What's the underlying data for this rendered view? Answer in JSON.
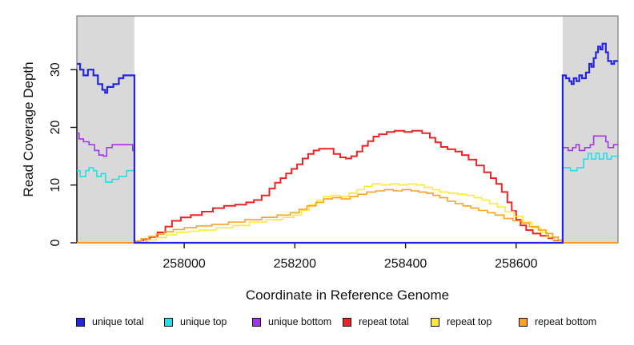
{
  "chart_data": {
    "type": "line",
    "step": true,
    "title": "",
    "xlabel": "Coordinate in Reference Genome",
    "ylabel": "Read Coverage Depth",
    "xlim": [
      257806,
      258784
    ],
    "ylim": [
      0,
      39.3
    ],
    "x_ticks": [
      258000,
      258200,
      258400,
      258600
    ],
    "y_ticks": [
      0,
      10,
      20,
      30
    ],
    "grid": false,
    "legend_position": "bottom",
    "background_color": "#ffffff",
    "box_color": "#8a8a8a",
    "axis_color": "#111111",
    "shade_color": "#d9d9d9",
    "shaded_regions": [
      {
        "x0": 257806,
        "x1": 257910
      },
      {
        "x0": 258684,
        "x1": 258784
      }
    ],
    "series": [
      {
        "name": "unique total",
        "color": "#2424e4",
        "z": 5,
        "lw": 2.2,
        "points": [
          [
            257806,
            31
          ],
          [
            257812,
            30
          ],
          [
            257818,
            29
          ],
          [
            257826,
            30
          ],
          [
            257836,
            29
          ],
          [
            257844,
            27.5
          ],
          [
            257852,
            26.5
          ],
          [
            257857,
            26
          ],
          [
            257861,
            27
          ],
          [
            257872,
            27.5
          ],
          [
            257882,
            28.5
          ],
          [
            257890,
            29
          ],
          [
            257910,
            0
          ],
          [
            258684,
            29
          ],
          [
            258690,
            28.5
          ],
          [
            258696,
            28
          ],
          [
            258700,
            27.5
          ],
          [
            258704,
            28.5
          ],
          [
            258709,
            28
          ],
          [
            258714,
            29
          ],
          [
            258719,
            28.5
          ],
          [
            258726,
            29.5
          ],
          [
            258732,
            31
          ],
          [
            258736,
            30.5
          ],
          [
            258740,
            32
          ],
          [
            258744,
            33
          ],
          [
            258748,
            34
          ],
          [
            258752,
            33.5
          ],
          [
            258756,
            34.5
          ],
          [
            258762,
            33
          ],
          [
            258766,
            31.5
          ],
          [
            258772,
            31
          ],
          [
            258777,
            31.5
          ]
        ]
      },
      {
        "name": "unique top",
        "color": "#22dfe8",
        "z": 0,
        "lw": 1.6,
        "points": [
          [
            257806,
            12.5
          ],
          [
            257812,
            11.5
          ],
          [
            257822,
            12.5
          ],
          [
            257828,
            13
          ],
          [
            257836,
            12.5
          ],
          [
            257842,
            11.5
          ],
          [
            257850,
            12
          ],
          [
            257858,
            10.5
          ],
          [
            257870,
            11
          ],
          [
            257882,
            11.5
          ],
          [
            257896,
            12.5
          ],
          [
            257910,
            0
          ],
          [
            258684,
            13
          ],
          [
            258698,
            12.5
          ],
          [
            258710,
            13
          ],
          [
            258722,
            14.5
          ],
          [
            258730,
            15.5
          ],
          [
            258736,
            14.5
          ],
          [
            258744,
            15.5
          ],
          [
            258750,
            14.5
          ],
          [
            258758,
            15.5
          ],
          [
            258764,
            14.5
          ],
          [
            258772,
            15
          ]
        ]
      },
      {
        "name": "unique bottom",
        "color": "#a335ec",
        "z": 1,
        "lw": 1.6,
        "points": [
          [
            257806,
            19
          ],
          [
            257810,
            18
          ],
          [
            257818,
            17.5
          ],
          [
            257828,
            17
          ],
          [
            257838,
            16
          ],
          [
            257846,
            15.2
          ],
          [
            257854,
            15
          ],
          [
            257860,
            16.5
          ],
          [
            257870,
            17
          ],
          [
            257902,
            17
          ],
          [
            257907,
            16
          ],
          [
            257910,
            0
          ],
          [
            258684,
            16.5
          ],
          [
            258694,
            16
          ],
          [
            258702,
            16.5
          ],
          [
            258708,
            17
          ],
          [
            258714,
            16
          ],
          [
            258724,
            16.5
          ],
          [
            258734,
            17
          ],
          [
            258740,
            18.5
          ],
          [
            258758,
            18.5
          ],
          [
            258762,
            17.5
          ],
          [
            258766,
            16.5
          ],
          [
            258776,
            17
          ]
        ]
      },
      {
        "name": "repeat total",
        "color": "#ed2424",
        "z": 2,
        "lw": 2.0,
        "points": [
          [
            257806,
            0
          ],
          [
            257916,
            0.2
          ],
          [
            257926,
            0.6
          ],
          [
            257938,
            1
          ],
          [
            257952,
            1.8
          ],
          [
            257966,
            2.8
          ],
          [
            257978,
            3.8
          ],
          [
            257994,
            4.4
          ],
          [
            258012,
            4.8
          ],
          [
            258032,
            5.4
          ],
          [
            258052,
            6
          ],
          [
            258072,
            6.4
          ],
          [
            258092,
            6.6
          ],
          [
            258112,
            7
          ],
          [
            258126,
            7.4
          ],
          [
            258140,
            8.2
          ],
          [
            258154,
            9.4
          ],
          [
            258164,
            10.4
          ],
          [
            258174,
            11.2
          ],
          [
            258184,
            12
          ],
          [
            258194,
            12.8
          ],
          [
            258204,
            13.6
          ],
          [
            258214,
            14.6
          ],
          [
            258224,
            15.4
          ],
          [
            258234,
            16
          ],
          [
            258244,
            16.3
          ],
          [
            258270,
            15.4
          ],
          [
            258282,
            14.8
          ],
          [
            258292,
            14.6
          ],
          [
            258302,
            15
          ],
          [
            258312,
            15.8
          ],
          [
            258322,
            16.8
          ],
          [
            258332,
            17.6
          ],
          [
            258342,
            18.4
          ],
          [
            258352,
            18.8
          ],
          [
            258366,
            19.2
          ],
          [
            258380,
            19.4
          ],
          [
            258398,
            19.2
          ],
          [
            258412,
            19.4
          ],
          [
            258430,
            19
          ],
          [
            258444,
            18.2
          ],
          [
            258454,
            17.4
          ],
          [
            258464,
            16.6
          ],
          [
            258476,
            16.2
          ],
          [
            258490,
            15.8
          ],
          [
            258502,
            15.2
          ],
          [
            258514,
            14.4
          ],
          [
            258528,
            13.4
          ],
          [
            258542,
            12.2
          ],
          [
            258554,
            11.2
          ],
          [
            258564,
            10.2
          ],
          [
            258574,
            8.8
          ],
          [
            258584,
            7
          ],
          [
            258592,
            5.5
          ],
          [
            258600,
            4
          ],
          [
            258608,
            3
          ],
          [
            258618,
            2.2
          ],
          [
            258630,
            1.6
          ],
          [
            258644,
            1.2
          ],
          [
            258658,
            0.8
          ],
          [
            258668,
            0.4
          ],
          [
            258678,
            0.2
          ],
          [
            258684,
            0
          ]
        ]
      },
      {
        "name": "repeat top",
        "color": "#fce93a",
        "z": 3,
        "lw": 1.6,
        "points": [
          [
            257806,
            0
          ],
          [
            257920,
            0.2
          ],
          [
            257934,
            0.5
          ],
          [
            257950,
            0.9
          ],
          [
            257968,
            1.4
          ],
          [
            257986,
            1.8
          ],
          [
            258008,
            2
          ],
          [
            258028,
            2.2
          ],
          [
            258058,
            2.6
          ],
          [
            258088,
            3
          ],
          [
            258118,
            3.6
          ],
          [
            258148,
            4
          ],
          [
            258178,
            4.4
          ],
          [
            258198,
            4.8
          ],
          [
            258212,
            5.6
          ],
          [
            258226,
            6.6
          ],
          [
            258240,
            7.4
          ],
          [
            258252,
            8
          ],
          [
            258266,
            8.2
          ],
          [
            258282,
            8
          ],
          [
            258298,
            8.6
          ],
          [
            258312,
            9.2
          ],
          [
            258326,
            9.8
          ],
          [
            258340,
            10.2
          ],
          [
            258356,
            10
          ],
          [
            258372,
            10.2
          ],
          [
            258388,
            10
          ],
          [
            258404,
            10.2
          ],
          [
            258420,
            10
          ],
          [
            258434,
            9.6
          ],
          [
            258448,
            9.2
          ],
          [
            258462,
            8.8
          ],
          [
            258478,
            8.6
          ],
          [
            258494,
            8.4
          ],
          [
            258510,
            8.2
          ],
          [
            258524,
            7.8
          ],
          [
            258538,
            7.4
          ],
          [
            258552,
            6.8
          ],
          [
            258566,
            6.2
          ],
          [
            258580,
            5.4
          ],
          [
            258596,
            4.6
          ],
          [
            258612,
            3.6
          ],
          [
            258628,
            2.6
          ],
          [
            258644,
            1.8
          ],
          [
            258656,
            1
          ],
          [
            258668,
            0.5
          ],
          [
            258678,
            0.2
          ],
          [
            258684,
            0
          ]
        ]
      },
      {
        "name": "repeat bottom",
        "color": "#ffa022",
        "z": 4,
        "lw": 1.6,
        "points": [
          [
            257806,
            0
          ],
          [
            257912,
            0.3
          ],
          [
            257922,
            0.7
          ],
          [
            257936,
            1.1
          ],
          [
            257950,
            1.5
          ],
          [
            257964,
            1.9
          ],
          [
            257980,
            2.3
          ],
          [
            258000,
            2.6
          ],
          [
            258022,
            2.9
          ],
          [
            258050,
            3.2
          ],
          [
            258080,
            3.6
          ],
          [
            258110,
            4
          ],
          [
            258140,
            4.4
          ],
          [
            258168,
            4.8
          ],
          [
            258192,
            5.2
          ],
          [
            258208,
            5.8
          ],
          [
            258222,
            6.4
          ],
          [
            258238,
            7
          ],
          [
            258252,
            7.6
          ],
          [
            258268,
            7.8
          ],
          [
            258284,
            7.6
          ],
          [
            258300,
            8
          ],
          [
            258314,
            8.4
          ],
          [
            258330,
            8.8
          ],
          [
            258346,
            9
          ],
          [
            258362,
            9.2
          ],
          [
            258378,
            9
          ],
          [
            258394,
            9.2
          ],
          [
            258410,
            9
          ],
          [
            258424,
            8.8
          ],
          [
            258438,
            8.6
          ],
          [
            258450,
            8.2
          ],
          [
            258462,
            7.8
          ],
          [
            258476,
            7.2
          ],
          [
            258490,
            6.8
          ],
          [
            258504,
            6.4
          ],
          [
            258518,
            6
          ],
          [
            258532,
            5.6
          ],
          [
            258548,
            5.2
          ],
          [
            258562,
            4.8
          ],
          [
            258578,
            4.2
          ],
          [
            258594,
            3.8
          ],
          [
            258610,
            3.4
          ],
          [
            258624,
            2.8
          ],
          [
            258640,
            2.2
          ],
          [
            258654,
            1.6
          ],
          [
            258666,
            1
          ],
          [
            258676,
            0.5
          ],
          [
            258684,
            0
          ]
        ]
      }
    ]
  }
}
